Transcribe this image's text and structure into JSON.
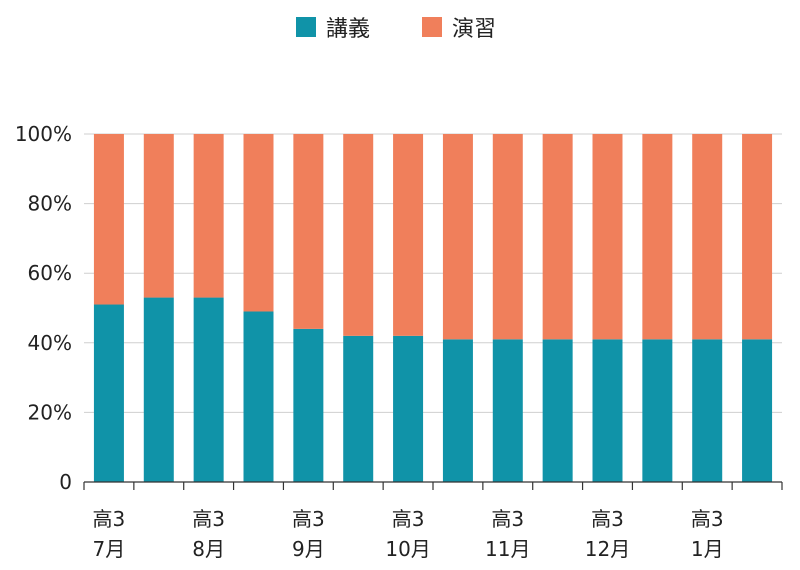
{
  "chart_data": {
    "type": "bar",
    "stacked": true,
    "categories": [
      "1",
      "2",
      "3",
      "4",
      "5",
      "6",
      "7",
      "8",
      "9",
      "10",
      "11",
      "12",
      "13",
      "14"
    ],
    "x_tick_labels": [
      {
        "line1": "高3",
        "line2": "7月",
        "at": 0
      },
      {
        "line1": "高3",
        "line2": "8月",
        "at": 2
      },
      {
        "line1": "高3",
        "line2": "9月",
        "at": 4
      },
      {
        "line1": "高3",
        "line2": "10月",
        "at": 6
      },
      {
        "line1": "高3",
        "line2": "11月",
        "at": 8
      },
      {
        "line1": "高3",
        "line2": "12月",
        "at": 10
      },
      {
        "line1": "高3",
        "line2": "1月",
        "at": 12
      }
    ],
    "series": [
      {
        "name": "講義",
        "color": "#1093a8",
        "values": [
          51,
          53,
          53,
          49,
          44,
          42,
          42,
          41,
          41,
          41,
          41,
          41,
          41,
          41
        ]
      },
      {
        "name": "演習",
        "color": "#f07f5b",
        "values": [
          49,
          47,
          47,
          51,
          56,
          58,
          58,
          59,
          59,
          59,
          59,
          59,
          59,
          59
        ]
      }
    ],
    "ylim": [
      0,
      100
    ],
    "y_ticks": [
      "0",
      "20%",
      "40%",
      "60%",
      "80%",
      "100%"
    ],
    "y_tick_values": [
      0,
      20,
      40,
      60,
      80,
      100
    ],
    "grid": true,
    "legend_position": "top-center"
  }
}
